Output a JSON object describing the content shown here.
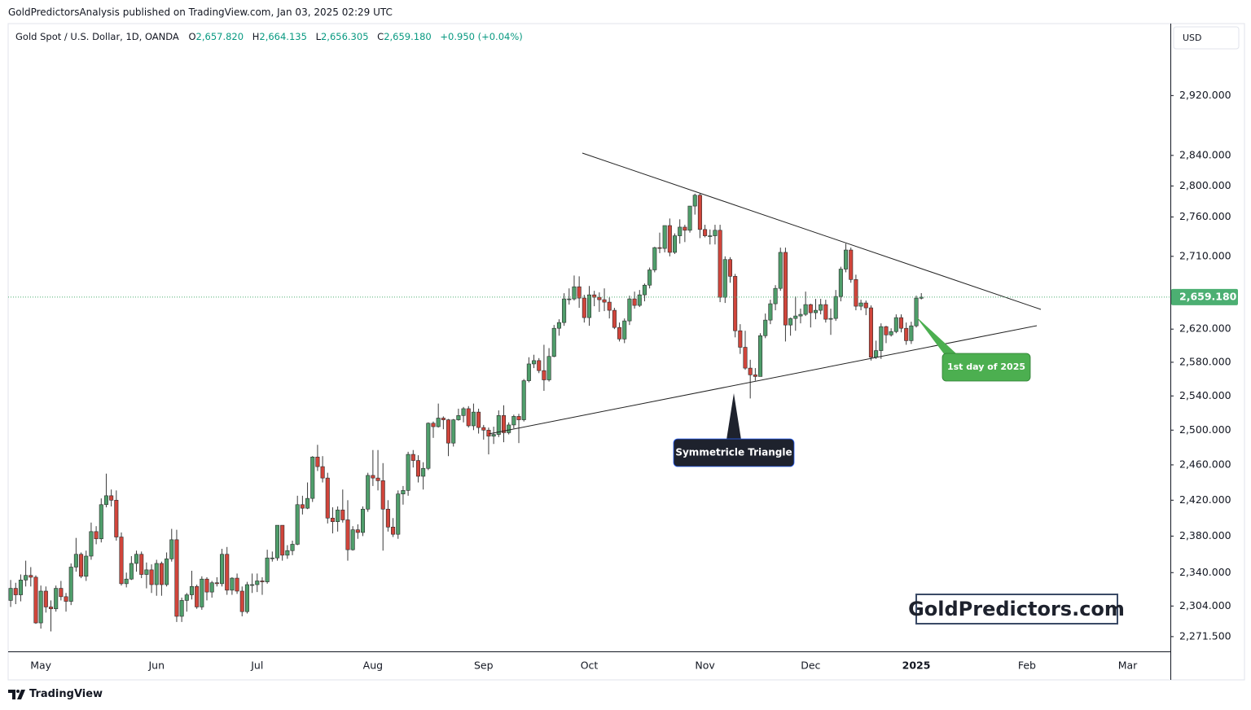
{
  "header": {
    "text": "GoldPredictorsAnalysis published on TradingView.com, Jan 03, 2025 02:29 UTC"
  },
  "legend": {
    "symbol": "Gold Spot / U.S. Dollar, 1D, OANDA",
    "items": [
      {
        "key": "O",
        "value": "2,657.820"
      },
      {
        "key": "H",
        "value": "2,664.135"
      },
      {
        "key": "L",
        "value": "2,656.305"
      },
      {
        "key": "C",
        "value": "2,659.180"
      }
    ],
    "change": "+0.950 (+0.04%)"
  },
  "currency": "USD",
  "annotations": {
    "triangle": "Symmetricle Triangle",
    "first_day": "1st day of 2025",
    "watermark": "GoldPredictors.com"
  },
  "footer": {
    "brand": "TradingView"
  },
  "chart_data": {
    "type": "candlestick",
    "log_scale": true,
    "grid": false,
    "up_color": "#4f9e6b",
    "down_color": "#d1453b",
    "last_price_label": "2,659.180",
    "last_price_color": "#4caf72",
    "ylim": [
      2256,
      3018
    ],
    "yticks": [
      {
        "value": 2271.5,
        "label": "2,271.500"
      },
      {
        "value": 2304,
        "label": "2,304.000"
      },
      {
        "value": 2340,
        "label": "2,340.000"
      },
      {
        "value": 2380,
        "label": "2,380.000"
      },
      {
        "value": 2420,
        "label": "2,420.000"
      },
      {
        "value": 2460,
        "label": "2,460.000"
      },
      {
        "value": 2500,
        "label": "2,500.000"
      },
      {
        "value": 2540,
        "label": "2,540.000"
      },
      {
        "value": 2580,
        "label": "2,580.000"
      },
      {
        "value": 2620,
        "label": "2,620.000"
      },
      {
        "value": 2710,
        "label": "2,710.000"
      },
      {
        "value": 2760,
        "label": "2,760.000"
      },
      {
        "value": 2800,
        "label": "2,800.000"
      },
      {
        "value": 2840,
        "label": "2,840.000"
      },
      {
        "value": 2920,
        "label": "2,920.000"
      }
    ],
    "categories": [
      null,
      null,
      null,
      null,
      null,
      null,
      "May",
      null,
      null,
      null,
      null,
      null,
      null,
      null,
      null,
      null,
      null,
      null,
      null,
      null,
      null,
      null,
      null,
      null,
      null,
      null,
      null,
      null,
      null,
      "Jun",
      null,
      null,
      null,
      null,
      null,
      null,
      null,
      null,
      null,
      null,
      null,
      null,
      null,
      null,
      null,
      null,
      null,
      null,
      null,
      "Jul",
      null,
      null,
      null,
      null,
      null,
      null,
      null,
      null,
      null,
      null,
      null,
      null,
      null,
      null,
      null,
      null,
      null,
      null,
      null,
      null,
      null,
      null,
      "Aug",
      null,
      null,
      null,
      null,
      null,
      null,
      null,
      null,
      null,
      null,
      null,
      null,
      null,
      null,
      null,
      null,
      null,
      null,
      null,
      null,
      null,
      "Sep",
      null,
      null,
      null,
      null,
      null,
      null,
      null,
      null,
      null,
      null,
      null,
      null,
      null,
      null,
      null,
      null,
      null,
      null,
      null,
      null,
      "Oct",
      null,
      null,
      null,
      null,
      null,
      null,
      null,
      null,
      null,
      null,
      null,
      null,
      null,
      null,
      null,
      null,
      null,
      null,
      null,
      null,
      null,
      null,
      "Nov",
      null,
      null,
      null,
      null,
      null,
      null,
      null,
      null,
      null,
      null,
      null,
      null,
      null,
      null,
      null,
      null,
      null,
      null,
      null,
      null,
      "Dec",
      null,
      null,
      null,
      null,
      null,
      null,
      null,
      null,
      null,
      null,
      null,
      null,
      null,
      null,
      null,
      null,
      null,
      null,
      null,
      null,
      "2025",
      null,
      null,
      null,
      null,
      null,
      null,
      null,
      null,
      null,
      null,
      null,
      null,
      null,
      null,
      null,
      null,
      null,
      null,
      null,
      null,
      null,
      "Feb",
      null,
      null,
      null,
      null,
      null,
      null,
      null,
      null,
      null,
      null,
      null,
      null,
      null,
      null,
      null,
      null,
      null,
      null,
      null,
      "Mar",
      null,
      null,
      null,
      null,
      null,
      null,
      null,
      null
    ],
    "open": [
      2310,
      2323,
      2316,
      2332,
      2337,
      2335,
      2286,
      2320,
      2303,
      2301,
      2323,
      2314,
      2309,
      2346,
      2360,
      2336,
      2358,
      2385,
      2377,
      2415,
      2425,
      2420,
      2379,
      2328,
      2333,
      2350,
      2360,
      2338,
      2343,
      2327,
      2350,
      2327,
      2355,
      2376,
      2293,
      2310,
      2316,
      2325,
      2303,
      2333,
      2319,
      2329,
      2328,
      2360,
      2321,
      2334,
      2320,
      2298,
      2327,
      2327,
      2331,
      2330,
      2356,
      2356,
      2392,
      2359,
      2364,
      2371,
      2415,
      2411,
      2422,
      2469,
      2458,
      2445,
      2400,
      2396,
      2409,
      2398,
      2365,
      2387,
      2384,
      2410,
      2448,
      2445,
      2442,
      2410,
      2390,
      2382,
      2427,
      2431,
      2472,
      2465,
      2447,
      2456,
      2508,
      2504,
      2514,
      2512,
      2485,
      2512,
      2517,
      2525,
      2505,
      2521,
      2503,
      2500,
      2493,
      2495,
      2517,
      2497,
      2506,
      2516,
      2512,
      2558,
      2578,
      2582,
      2570,
      2559,
      2587,
      2621,
      2628,
      2657,
      2657,
      2672,
      2658,
      2634,
      2662,
      2659,
      2656,
      2653,
      2643,
      2622,
      2608,
      2630,
      2657,
      2649,
      2662,
      2674,
      2693,
      2721,
      2720,
      2749,
      2715,
      2736,
      2747,
      2743,
      2774,
      2788,
      2744,
      2736,
      2736,
      2743,
      2659,
      2706,
      2685,
      2618,
      2598,
      2573,
      2565,
      2563,
      2612,
      2631,
      2651,
      2670,
      2715,
      2625,
      2633,
      2636,
      2638,
      2650,
      2640,
      2643,
      2650,
      2632,
      2633,
      2660,
      2694,
      2718,
      2681,
      2648,
      2652,
      2646,
      2586,
      2594,
      2623,
      2613,
      2617,
      2634,
      2621,
      2606,
      2624,
      2657.82,
      null,
      null,
      null,
      null,
      null,
      null,
      null,
      null,
      null,
      null,
      null,
      null,
      null,
      null,
      null,
      null,
      null,
      null,
      null,
      null,
      null,
      null,
      null,
      null,
      null,
      null,
      null,
      null,
      null,
      null,
      null,
      null,
      null,
      null,
      null,
      null,
      null,
      null,
      null,
      null,
      null,
      null,
      null,
      null,
      null,
      null,
      null,
      null,
      null
    ],
    "high": [
      2332,
      2329,
      2338,
      2353,
      2346,
      2337,
      2326,
      2325,
      2310,
      2326,
      2331,
      2318,
      2350,
      2378,
      2362,
      2364,
      2395,
      2391,
      2422,
      2450,
      2432,
      2431,
      2384,
      2340,
      2358,
      2364,
      2363,
      2351,
      2349,
      2354,
      2352,
      2362,
      2388,
      2387,
      2313,
      2318,
      2342,
      2327,
      2336,
      2335,
      2331,
      2335,
      2366,
      2368,
      2335,
      2339,
      2325,
      2330,
      2339,
      2339,
      2335,
      2365,
      2363,
      2392,
      2392,
      2370,
      2375,
      2425,
      2425,
      2440,
      2470,
      2483,
      2470,
      2451,
      2412,
      2413,
      2432,
      2420,
      2391,
      2393,
      2413,
      2451,
      2477,
      2477,
      2462,
      2420,
      2400,
      2431,
      2436,
      2475,
      2477,
      2471,
      2463,
      2509,
      2510,
      2531,
      2516,
      2513,
      2513,
      2525,
      2527,
      2528,
      2531,
      2525,
      2506,
      2503,
      2504,
      2523,
      2529,
      2509,
      2518,
      2519,
      2560,
      2586,
      2589,
      2585,
      2601,
      2597,
      2625,
      2632,
      2664,
      2670,
      2686,
      2685,
      2662,
      2673,
      2667,
      2665,
      2670,
      2659,
      2646,
      2628,
      2633,
      2661,
      2666,
      2668,
      2676,
      2696,
      2722,
      2740,
      2749,
      2758,
      2739,
      2757,
      2750,
      2774,
      2790,
      2790,
      2750,
      2744,
      2750,
      2750,
      2710,
      2709,
      2688,
      2626,
      2618,
      2583,
      2573,
      2615,
      2639,
      2656,
      2674,
      2721,
      2721,
      2634,
      2660,
      2645,
      2666,
      2651,
      2657,
      2657,
      2656,
      2645,
      2668,
      2697,
      2726,
      2721,
      2687,
      2656,
      2655,
      2649,
      2606,
      2627,
      2624,
      2621,
      2638,
      2638,
      2628,
      2629,
      2661,
      2664.135,
      null,
      null,
      null,
      null,
      null,
      null,
      null,
      null,
      null,
      null,
      null,
      null,
      null,
      null,
      null,
      null,
      null,
      null,
      null,
      null,
      null,
      null,
      null,
      null,
      null,
      null,
      null,
      null,
      null,
      null,
      null,
      null,
      null,
      null,
      null,
      null,
      null,
      null,
      null,
      null,
      null,
      null,
      null,
      null,
      null,
      null,
      null,
      null,
      null
    ],
    "low": [
      2303,
      2306,
      2309,
      2325,
      2325,
      2285,
      2280,
      2297,
      2277,
      2298,
      2310,
      2298,
      2305,
      2341,
      2334,
      2331,
      2354,
      2371,
      2373,
      2412,
      2413,
      2375,
      2326,
      2324,
      2332,
      2341,
      2334,
      2323,
      2318,
      2315,
      2315,
      2325,
      2352,
      2287,
      2287,
      2298,
      2311,
      2301,
      2300,
      2310,
      2313,
      2325,
      2325,
      2316,
      2316,
      2317,
      2293,
      2296,
      2318,
      2319,
      2316,
      2328,
      2352,
      2353,
      2353,
      2355,
      2359,
      2370,
      2404,
      2410,
      2418,
      2453,
      2440,
      2394,
      2383,
      2385,
      2395,
      2353,
      2364,
      2377,
      2380,
      2407,
      2436,
      2431,
      2364,
      2385,
      2379,
      2377,
      2415,
      2425,
      2457,
      2440,
      2432,
      2454,
      2491,
      2503,
      2501,
      2470,
      2481,
      2511,
      2509,
      2503,
      2500,
      2496,
      2489,
      2472,
      2484,
      2492,
      2486,
      2495,
      2502,
      2485,
      2510,
      2556,
      2573,
      2567,
      2546,
      2557,
      2586,
      2612,
      2624,
      2650,
      2655,
      2646,
      2628,
      2624,
      2648,
      2641,
      2642,
      2633,
      2620,
      2605,
      2603,
      2625,
      2645,
      2647,
      2654,
      2670,
      2690,
      2714,
      2715,
      2710,
      2713,
      2726,
      2728,
      2740,
      2763,
      2733,
      2734,
      2725,
      2725,
      2653,
      2652,
      2677,
      2610,
      2590,
      2571,
      2537,
      2558,
      2563,
      2609,
      2626,
      2643,
      2667,
      2605,
      2612,
      2618,
      2627,
      2636,
      2622,
      2632,
      2638,
      2628,
      2613,
      2630,
      2654,
      2690,
      2677,
      2643,
      2643,
      2637,
      2582,
      2584,
      2584,
      2603,
      2611,
      2615,
      2616,
      2601,
      2602,
      2622,
      2656.305,
      null,
      null,
      null,
      null,
      null,
      null,
      null,
      null,
      null,
      null,
      null,
      null,
      null,
      null,
      null,
      null,
      null,
      null,
      null,
      null,
      null,
      null,
      null,
      null,
      null,
      null,
      null,
      null,
      null,
      null,
      null,
      null,
      null,
      null,
      null,
      null,
      null,
      null,
      null,
      null,
      null,
      null,
      null,
      null,
      null,
      null,
      null,
      null,
      null
    ],
    "close": [
      2323,
      2316,
      2332,
      2337,
      2335,
      2286,
      2320,
      2303,
      2301,
      2323,
      2314,
      2309,
      2346,
      2360,
      2336,
      2358,
      2385,
      2377,
      2415,
      2425,
      2420,
      2379,
      2328,
      2333,
      2350,
      2360,
      2338,
      2343,
      2327,
      2350,
      2327,
      2355,
      2376,
      2293,
      2310,
      2316,
      2325,
      2303,
      2333,
      2319,
      2329,
      2328,
      2360,
      2321,
      2334,
      2320,
      2298,
      2327,
      2327,
      2331,
      2330,
      2356,
      2356,
      2392,
      2359,
      2364,
      2371,
      2415,
      2411,
      2422,
      2469,
      2458,
      2445,
      2400,
      2396,
      2409,
      2398,
      2365,
      2387,
      2384,
      2410,
      2448,
      2445,
      2442,
      2410,
      2390,
      2382,
      2427,
      2431,
      2472,
      2465,
      2447,
      2456,
      2508,
      2504,
      2514,
      2512,
      2485,
      2512,
      2517,
      2525,
      2505,
      2521,
      2503,
      2500,
      2493,
      2495,
      2517,
      2497,
      2506,
      2516,
      2512,
      2558,
      2578,
      2582,
      2570,
      2559,
      2587,
      2621,
      2628,
      2657,
      2657,
      2672,
      2658,
      2634,
      2662,
      2659,
      2656,
      2653,
      2643,
      2622,
      2608,
      2630,
      2657,
      2649,
      2662,
      2674,
      2693,
      2721,
      2720,
      2749,
      2715,
      2736,
      2747,
      2743,
      2774,
      2788,
      2744,
      2736,
      2736,
      2743,
      2659,
      2706,
      2685,
      2618,
      2598,
      2573,
      2565,
      2563,
      2612,
      2631,
      2651,
      2670,
      2715,
      2625,
      2633,
      2636,
      2638,
      2650,
      2640,
      2643,
      2650,
      2632,
      2633,
      2660,
      2694,
      2718,
      2681,
      2648,
      2652,
      2646,
      2586,
      2594,
      2623,
      2613,
      2617,
      2634,
      2621,
      2606,
      2624,
      2658,
      2659.18,
      null,
      null,
      null,
      null,
      null,
      null,
      null,
      null,
      null,
      null,
      null,
      null,
      null,
      null,
      null,
      null,
      null,
      null,
      null,
      null,
      null,
      null,
      null,
      null,
      null,
      null,
      null,
      null,
      null,
      null,
      null,
      null,
      null,
      null,
      null,
      null,
      null,
      null,
      null,
      null,
      null,
      null,
      null,
      null,
      null,
      null,
      null,
      null,
      null
    ]
  }
}
